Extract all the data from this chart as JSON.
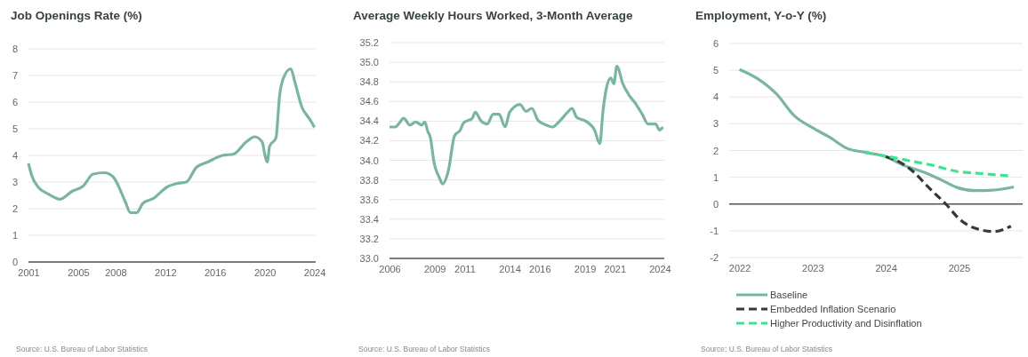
{
  "chart_data": [
    {
      "type": "line",
      "title": "Job Openings Rate (%)",
      "x": [
        2001.0,
        2001.3,
        2001.8,
        2002.6,
        2003.2,
        2003.5,
        2004.5,
        2005.4,
        2006.2,
        2007.1,
        2007.8,
        2008.8,
        2009.2,
        2009.7,
        2010.2,
        2011.1,
        2012.1,
        2013.0,
        2013.7,
        2014.5,
        2015.4,
        2016.6,
        2017.5,
        2018.5,
        2019.2,
        2019.8,
        2020.0,
        2020.2,
        2020.4,
        2020.9,
        2021.2,
        2021.5,
        2022.1,
        2022.4,
        2022.6,
        2023.0,
        2023.4,
        2023.7,
        2024.0
      ],
      "series": [
        {
          "color": "#7ab5a2",
          "values": [
            3.7,
            3.2,
            2.8,
            2.55,
            2.4,
            2.35,
            2.65,
            2.85,
            3.3,
            3.35,
            3.2,
            2.25,
            1.85,
            1.85,
            2.2,
            2.4,
            2.8,
            2.95,
            3.0,
            3.55,
            3.75,
            4.0,
            4.05,
            4.5,
            4.7,
            4.5,
            4.05,
            3.75,
            4.35,
            4.65,
            6.25,
            6.9,
            7.25,
            6.8,
            6.45,
            5.8,
            5.5,
            5.3,
            5.05
          ]
        }
      ],
      "xlim": [
        2001,
        2024.1
      ],
      "xticks": [
        2001,
        2005,
        2008,
        2012,
        2016,
        2020,
        2024
      ],
      "ylim": [
        0,
        8
      ],
      "yticks": [
        0,
        1,
        2,
        3,
        4,
        5,
        6,
        7,
        8
      ],
      "grid": "y",
      "line_style": "solid",
      "annotations": [
        "Source: U.S. Bureau of Labor Statistics"
      ]
    },
    {
      "type": "line",
      "title": "Average Weekly Hours Worked, 3-Month Average",
      "x": [
        2006.0,
        2006.4,
        2006.6,
        2006.95,
        2007.35,
        2007.75,
        2008.15,
        2008.35,
        2008.54,
        2008.74,
        2008.94,
        2009.33,
        2009.53,
        2009.93,
        2010.33,
        2010.72,
        2010.92,
        2011.52,
        2011.71,
        2012.11,
        2012.51,
        2012.9,
        2013.3,
        2013.7,
        2014.0,
        2014.69,
        2015.09,
        2015.48,
        2015.88,
        2016.28,
        2016.87,
        2017.27,
        2017.86,
        2018.16,
        2018.46,
        2019.06,
        2019.65,
        2020.01,
        2020.21,
        2020.44,
        2020.74,
        2020.94,
        2021.14,
        2021.54,
        2021.93,
        2022.43,
        2022.83,
        2023.22,
        2023.72,
        2023.98,
        2024.21
      ],
      "series": [
        {
          "color": "#7ab5a2",
          "values": [
            34.34,
            34.34,
            34.37,
            34.43,
            34.36,
            34.39,
            34.36,
            34.39,
            34.3,
            34.22,
            34.0,
            33.82,
            33.76,
            33.9,
            34.25,
            34.31,
            34.38,
            34.43,
            34.49,
            34.4,
            34.37,
            34.47,
            34.47,
            34.34,
            34.49,
            34.57,
            34.5,
            34.53,
            34.41,
            34.37,
            34.34,
            34.39,
            34.49,
            34.53,
            34.44,
            34.4,
            34.31,
            34.17,
            34.49,
            34.73,
            34.84,
            34.78,
            34.96,
            34.78,
            34.67,
            34.57,
            34.47,
            34.37,
            34.37,
            34.31,
            34.34
          ]
        }
      ],
      "xlim": [
        2006,
        2024.3
      ],
      "xticks": [
        2006,
        2009,
        2011,
        2014,
        2016,
        2019,
        2021,
        2024
      ],
      "ylim": [
        33.0,
        35.2
      ],
      "yticks": [
        {
          "value": 33.0,
          "label": "33.0"
        },
        33.2,
        33.4,
        33.6,
        33.8,
        {
          "value": 34.0,
          "label": "34.0"
        },
        34.2,
        34.4,
        34.6,
        34.8,
        {
          "value": 35.0,
          "label": "35.0"
        },
        35.2
      ],
      "grid": "y",
      "line_style": "solid",
      "annotations": [
        "Source: U.S. Bureau of Labor Statistics"
      ]
    },
    {
      "type": "line",
      "title": "Employment, Y-o-Y (%)",
      "series": [
        {
          "name": "Baseline",
          "color": "#7ab5a2",
          "line_style": "solid",
          "x": [
            2022.0,
            2022.24,
            2022.51,
            2022.75,
            2023.0,
            2023.23,
            2023.48,
            2023.72,
            2024.0,
            2024.25,
            2024.49,
            2024.73,
            2024.98,
            2025.22,
            2025.46,
            2025.75
          ],
          "values": [
            5.03,
            4.7,
            4.1,
            3.3,
            2.85,
            2.5,
            2.07,
            1.93,
            1.77,
            1.44,
            1.22,
            0.94,
            0.61,
            0.5,
            0.52,
            0.64
          ]
        },
        {
          "name": "Embedded Inflation Scenario",
          "color": "#333a3a",
          "line_style": "dashed",
          "x": [
            2024.0,
            2024.17,
            2024.37,
            2024.61,
            2024.82,
            2025.02,
            2025.26,
            2025.48,
            2025.71
          ],
          "values": [
            1.77,
            1.6,
            1.22,
            0.55,
            0,
            -0.6,
            -0.94,
            -1.03,
            -0.83
          ]
        },
        {
          "name": "Higher Productivity and Disinflation",
          "color": "#3de48f",
          "line_style": "dashed",
          "x": [
            2023.72,
            2024.0,
            2024.32,
            2024.65,
            2024.97,
            2025.22,
            2025.46,
            2025.71
          ],
          "values": [
            1.93,
            1.79,
            1.62,
            1.44,
            1.22,
            1.16,
            1.1,
            1.05
          ]
        }
      ],
      "xlim": [
        2021.86,
        2025.87
      ],
      "xticks": [
        2022,
        2023,
        2024,
        2025
      ],
      "ylim": [
        -2,
        6
      ],
      "yticks": [
        -2,
        -1,
        0,
        1,
        2,
        3,
        4,
        5,
        6
      ],
      "grid": "y",
      "legend": "bottom",
      "annotations": [
        "Source: U.S. Bureau of Labor Statistics"
      ]
    }
  ]
}
